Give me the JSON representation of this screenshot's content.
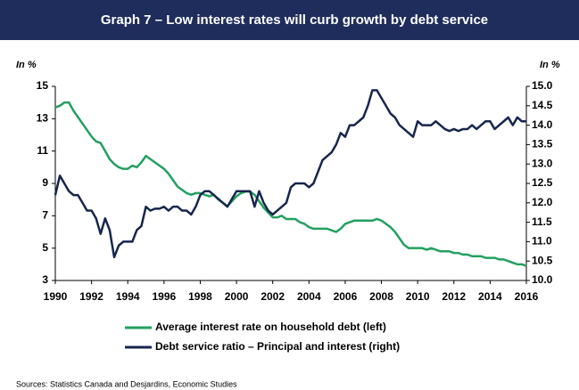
{
  "chart_data": {
    "type": "line",
    "title": "Graph 7 – Low interest rates will curb growth by debt service",
    "ylabel": "In %",
    "y2label": "In %",
    "source": "Sources: Statistics Canada and Desjardins, Economic Studies",
    "x": [
      1990,
      1990.25,
      1990.5,
      1990.75,
      1991,
      1991.25,
      1991.5,
      1991.75,
      1992,
      1992.25,
      1992.5,
      1992.75,
      1993,
      1993.25,
      1993.5,
      1993.75,
      1994,
      1994.25,
      1994.5,
      1994.75,
      1995,
      1995.25,
      1995.5,
      1995.75,
      1996,
      1996.25,
      1996.5,
      1996.75,
      1997,
      1997.25,
      1997.5,
      1997.75,
      1998,
      1998.25,
      1998.5,
      1998.75,
      1999,
      1999.25,
      1999.5,
      1999.75,
      2000,
      2000.25,
      2000.5,
      2000.75,
      2001,
      2001.25,
      2001.5,
      2001.75,
      2002,
      2002.25,
      2002.5,
      2002.75,
      2003,
      2003.25,
      2003.5,
      2003.75,
      2004,
      2004.25,
      2004.5,
      2004.75,
      2005,
      2005.25,
      2005.5,
      2005.75,
      2006,
      2006.25,
      2006.5,
      2006.75,
      2007,
      2007.25,
      2007.5,
      2007.75,
      2008,
      2008.25,
      2008.5,
      2008.75,
      2009,
      2009.25,
      2009.5,
      2009.75,
      2010,
      2010.25,
      2010.5,
      2010.75,
      2011,
      2011.25,
      2011.5,
      2011.75,
      2012,
      2012.25,
      2012.5,
      2012.75,
      2013,
      2013.25,
      2013.5,
      2013.75,
      2014,
      2014.25,
      2014.5,
      2014.75,
      2015,
      2015.25,
      2015.5,
      2015.75,
      2016
    ],
    "series": [
      {
        "name": "Average interest rate on household debt (left)",
        "color": "#23a05f",
        "axis": "y",
        "values": [
          13.7,
          13.8,
          14.0,
          14.0,
          13.5,
          13.1,
          12.7,
          12.3,
          11.9,
          11.6,
          11.5,
          11.0,
          10.5,
          10.2,
          10.0,
          9.9,
          9.9,
          10.1,
          10.0,
          10.3,
          10.7,
          10.5,
          10.3,
          10.1,
          9.9,
          9.6,
          9.2,
          8.8,
          8.6,
          8.4,
          8.3,
          8.4,
          8.4,
          8.3,
          8.2,
          8.3,
          8.0,
          7.8,
          7.6,
          7.9,
          8.2,
          8.4,
          8.5,
          8.5,
          8.3,
          7.9,
          7.5,
          7.2,
          6.9,
          6.9,
          7.0,
          6.8,
          6.8,
          6.8,
          6.6,
          6.5,
          6.3,
          6.2,
          6.2,
          6.2,
          6.2,
          6.1,
          6.0,
          6.2,
          6.5,
          6.6,
          6.7,
          6.7,
          6.7,
          6.7,
          6.7,
          6.8,
          6.7,
          6.5,
          6.3,
          6.0,
          5.6,
          5.2,
          5.0,
          5.0,
          5.0,
          5.0,
          4.9,
          5.0,
          4.9,
          4.8,
          4.8,
          4.8,
          4.7,
          4.7,
          4.6,
          4.6,
          4.5,
          4.5,
          4.5,
          4.4,
          4.4,
          4.4,
          4.3,
          4.3,
          4.2,
          4.1,
          4.0,
          4.0,
          3.9
        ]
      },
      {
        "name": "Debt service ratio – Principal and interest (right)",
        "color": "#17264d",
        "axis": "y2",
        "values": [
          12.2,
          12.7,
          12.5,
          12.3,
          12.2,
          12.2,
          12.0,
          11.8,
          11.8,
          11.6,
          11.2,
          11.6,
          11.3,
          10.6,
          10.9,
          11.0,
          11.0,
          11.0,
          11.3,
          11.4,
          11.9,
          11.8,
          11.85,
          11.85,
          11.9,
          11.8,
          11.9,
          11.9,
          11.8,
          11.8,
          11.7,
          11.9,
          12.2,
          12.3,
          12.3,
          12.2,
          12.1,
          12.0,
          11.9,
          12.1,
          12.3,
          12.3,
          12.3,
          12.3,
          11.9,
          12.3,
          12.0,
          11.8,
          11.7,
          11.8,
          11.9,
          12.0,
          12.4,
          12.5,
          12.5,
          12.5,
          12.4,
          12.5,
          12.8,
          13.1,
          13.2,
          13.3,
          13.5,
          13.8,
          13.7,
          14.0,
          14.0,
          14.1,
          14.2,
          14.5,
          14.9,
          14.9,
          14.7,
          14.5,
          14.3,
          14.2,
          14.0,
          13.9,
          13.8,
          13.7,
          14.1,
          14.0,
          14.0,
          14.0,
          14.1,
          14.0,
          13.9,
          13.85,
          13.9,
          13.85,
          13.9,
          13.9,
          14.0,
          13.9,
          14.0,
          14.1,
          14.1,
          13.9,
          14.0,
          14.1,
          14.2,
          14.0,
          14.2,
          14.1,
          14.1
        ]
      }
    ],
    "xlim": [
      1990,
      2016
    ],
    "xticks": [
      1990,
      1992,
      1994,
      1996,
      1998,
      2000,
      2002,
      2004,
      2006,
      2008,
      2010,
      2012,
      2014,
      2016
    ],
    "ylim": [
      3,
      15
    ],
    "yticks": [
      3,
      5,
      7,
      9,
      11,
      13,
      15
    ],
    "y2lim": [
      10,
      15
    ],
    "y2ticks": [
      {
        "value": 10,
        "label": "10.0"
      },
      {
        "value": 10.5,
        "label": "10.5"
      },
      {
        "value": 11,
        "label": "11.0"
      },
      {
        "value": 11.5,
        "label": "11.5"
      },
      {
        "value": 12,
        "label": "12.0"
      },
      {
        "value": 12.5,
        "label": "12.5"
      },
      {
        "value": 13,
        "label": "13.0"
      },
      {
        "value": 13.5,
        "label": "13.5"
      },
      {
        "value": 14,
        "label": "14.0"
      },
      {
        "value": 14.5,
        "label": "14.5"
      },
      {
        "value": 15,
        "label": "15.0"
      }
    ],
    "grid": false
  }
}
